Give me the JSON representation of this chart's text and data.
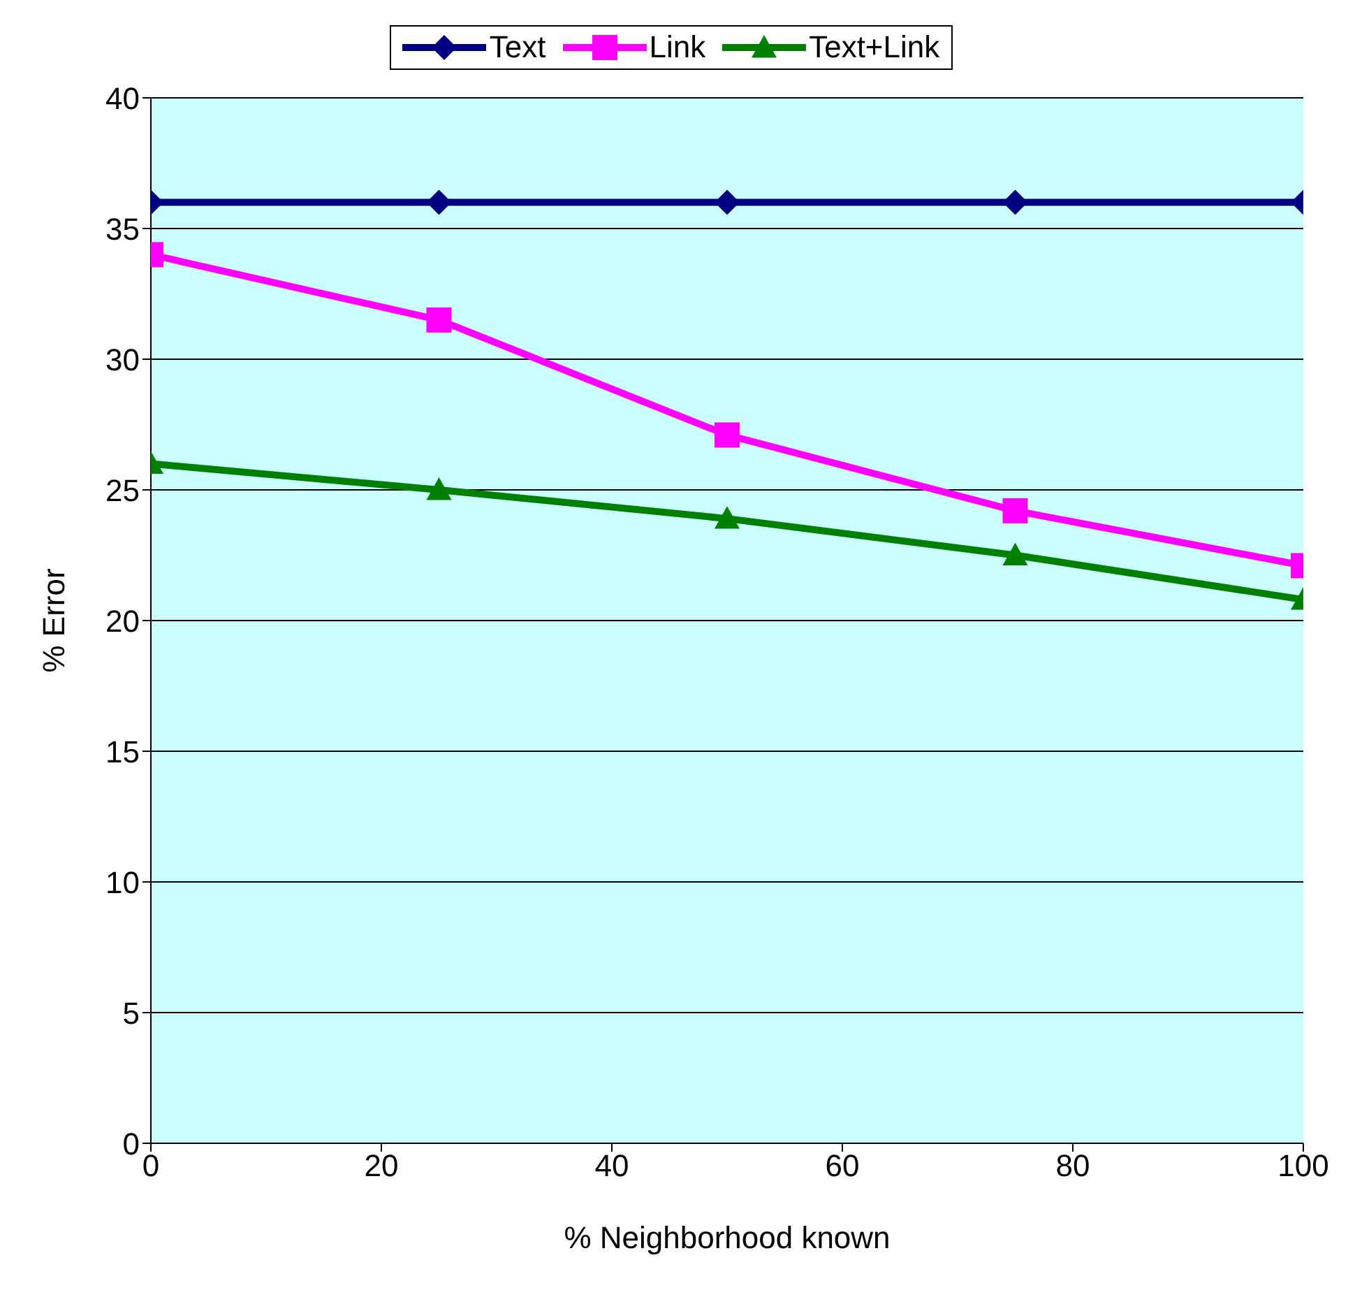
{
  "chart_data": {
    "type": "line",
    "xlabel": "% Neighborhood known",
    "ylabel": "% Error",
    "x": [
      0,
      25,
      50,
      75,
      100
    ],
    "series": [
      {
        "name": "Text",
        "color": "#000080",
        "marker": "diamond",
        "values": [
          36,
          36,
          36,
          36,
          36
        ]
      },
      {
        "name": "Link",
        "color": "#ff00ff",
        "marker": "square",
        "values": [
          34,
          31.5,
          27.1,
          24.2,
          22.1
        ]
      },
      {
        "name": "Text+Link",
        "color": "#008000",
        "marker": "triangle",
        "values": [
          26,
          25,
          23.9,
          22.5,
          20.8
        ]
      }
    ],
    "xlim": [
      0,
      100
    ],
    "xticks": [
      0,
      20,
      40,
      60,
      80,
      100
    ],
    "ylim": [
      0,
      40
    ],
    "yticks": [
      0,
      5,
      10,
      15,
      20,
      25,
      30,
      35,
      40
    ],
    "grid": "y",
    "legend": "top",
    "line_style": "solid"
  }
}
